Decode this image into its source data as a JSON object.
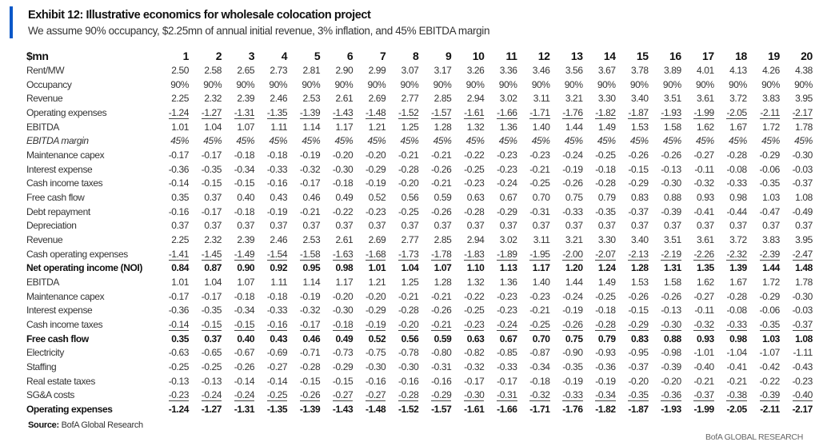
{
  "header": {
    "title": "Exhibit 12: Illustrative economics for wholesale colocation project",
    "subtitle": "We assume 90% occupancy, $2.25mn of annual initial revenue, 3% inflation, and 45% EBITDA margin",
    "accent_color": "#0a58c8"
  },
  "table": {
    "unit_label": "$mn",
    "columns": [
      "1",
      "2",
      "3",
      "4",
      "5",
      "6",
      "7",
      "8",
      "9",
      "10",
      "11",
      "12",
      "13",
      "14",
      "15",
      "16",
      "17",
      "18",
      "19",
      "20"
    ],
    "rows": [
      {
        "label": "Rent/MW",
        "values": [
          "2.50",
          "2.58",
          "2.65",
          "2.73",
          "2.81",
          "2.90",
          "2.99",
          "3.07",
          "3.17",
          "3.26",
          "3.36",
          "3.46",
          "3.56",
          "3.67",
          "3.78",
          "3.89",
          "4.01",
          "4.13",
          "4.26",
          "4.38"
        ]
      },
      {
        "label": "Occupancy",
        "values": [
          "90%",
          "90%",
          "90%",
          "90%",
          "90%",
          "90%",
          "90%",
          "90%",
          "90%",
          "90%",
          "90%",
          "90%",
          "90%",
          "90%",
          "90%",
          "90%",
          "90%",
          "90%",
          "90%",
          "90%"
        ]
      },
      {
        "label": "Revenue",
        "values": [
          "2.25",
          "2.32",
          "2.39",
          "2.46",
          "2.53",
          "2.61",
          "2.69",
          "2.77",
          "2.85",
          "2.94",
          "3.02",
          "3.11",
          "3.21",
          "3.30",
          "3.40",
          "3.51",
          "3.61",
          "3.72",
          "3.83",
          "3.95"
        ]
      },
      {
        "label": "Operating expenses",
        "values": [
          "-1.24",
          "-1.27",
          "-1.31",
          "-1.35",
          "-1.39",
          "-1.43",
          "-1.48",
          "-1.52",
          "-1.57",
          "-1.61",
          "-1.66",
          "-1.71",
          "-1.76",
          "-1.82",
          "-1.87",
          "-1.93",
          "-1.99",
          "-2.05",
          "-2.11",
          "-2.17"
        ]
      },
      {
        "label": "EBITDA",
        "values": [
          "1.01",
          "1.04",
          "1.07",
          "1.11",
          "1.14",
          "1.17",
          "1.21",
          "1.25",
          "1.28",
          "1.32",
          "1.36",
          "1.40",
          "1.44",
          "1.49",
          "1.53",
          "1.58",
          "1.62",
          "1.67",
          "1.72",
          "1.78"
        ]
      },
      {
        "label": "EBITDA margin",
        "values": [
          "45%",
          "45%",
          "45%",
          "45%",
          "45%",
          "45%",
          "45%",
          "45%",
          "45%",
          "45%",
          "45%",
          "45%",
          "45%",
          "45%",
          "45%",
          "45%",
          "45%",
          "45%",
          "45%",
          "45%"
        ]
      },
      {
        "label": "Maintenance capex",
        "values": [
          "-0.17",
          "-0.17",
          "-0.18",
          "-0.18",
          "-0.19",
          "-0.20",
          "-0.20",
          "-0.21",
          "-0.21",
          "-0.22",
          "-0.23",
          "-0.23",
          "-0.24",
          "-0.25",
          "-0.26",
          "-0.26",
          "-0.27",
          "-0.28",
          "-0.29",
          "-0.30"
        ]
      },
      {
        "label": "Interest expense",
        "values": [
          "-0.36",
          "-0.35",
          "-0.34",
          "-0.33",
          "-0.32",
          "-0.30",
          "-0.29",
          "-0.28",
          "-0.26",
          "-0.25",
          "-0.23",
          "-0.21",
          "-0.19",
          "-0.18",
          "-0.15",
          "-0.13",
          "-0.11",
          "-0.08",
          "-0.06",
          "-0.03"
        ]
      },
      {
        "label": "Cash income taxes",
        "values": [
          "-0.14",
          "-0.15",
          "-0.15",
          "-0.16",
          "-0.17",
          "-0.18",
          "-0.19",
          "-0.20",
          "-0.21",
          "-0.23",
          "-0.24",
          "-0.25",
          "-0.26",
          "-0.28",
          "-0.29",
          "-0.30",
          "-0.32",
          "-0.33",
          "-0.35",
          "-0.37"
        ]
      },
      {
        "label": "Free cash flow",
        "values": [
          "0.35",
          "0.37",
          "0.40",
          "0.43",
          "0.46",
          "0.49",
          "0.52",
          "0.56",
          "0.59",
          "0.63",
          "0.67",
          "0.70",
          "0.75",
          "0.79",
          "0.83",
          "0.88",
          "0.93",
          "0.98",
          "1.03",
          "1.08"
        ]
      },
      {
        "label": "Debt repayment",
        "values": [
          "-0.16",
          "-0.17",
          "-0.18",
          "-0.19",
          "-0.21",
          "-0.22",
          "-0.23",
          "-0.25",
          "-0.26",
          "-0.28",
          "-0.29",
          "-0.31",
          "-0.33",
          "-0.35",
          "-0.37",
          "-0.39",
          "-0.41",
          "-0.44",
          "-0.47",
          "-0.49"
        ]
      },
      {
        "label": "Depreciation",
        "values": [
          "0.37",
          "0.37",
          "0.37",
          "0.37",
          "0.37",
          "0.37",
          "0.37",
          "0.37",
          "0.37",
          "0.37",
          "0.37",
          "0.37",
          "0.37",
          "0.37",
          "0.37",
          "0.37",
          "0.37",
          "0.37",
          "0.37",
          "0.37"
        ]
      },
      {
        "label": "Revenue",
        "values": [
          "2.25",
          "2.32",
          "2.39",
          "2.46",
          "2.53",
          "2.61",
          "2.69",
          "2.77",
          "2.85",
          "2.94",
          "3.02",
          "3.11",
          "3.21",
          "3.30",
          "3.40",
          "3.51",
          "3.61",
          "3.72",
          "3.83",
          "3.95"
        ]
      },
      {
        "label": "Cash operating expenses",
        "values": [
          "-1.41",
          "-1.45",
          "-1.49",
          "-1.54",
          "-1.58",
          "-1.63",
          "-1.68",
          "-1.73",
          "-1.78",
          "-1.83",
          "-1.89",
          "-1.95",
          "-2.00",
          "-2.07",
          "-2.13",
          "-2.19",
          "-2.26",
          "-2.32",
          "-2.39",
          "-2.47"
        ]
      },
      {
        "label": "Net operating income (NOI)",
        "values": [
          "0.84",
          "0.87",
          "0.90",
          "0.92",
          "0.95",
          "0.98",
          "1.01",
          "1.04",
          "1.07",
          "1.10",
          "1.13",
          "1.17",
          "1.20",
          "1.24",
          "1.28",
          "1.31",
          "1.35",
          "1.39",
          "1.44",
          "1.48"
        ]
      },
      {
        "label": "EBITDA",
        "values": [
          "1.01",
          "1.04",
          "1.07",
          "1.11",
          "1.14",
          "1.17",
          "1.21",
          "1.25",
          "1.28",
          "1.32",
          "1.36",
          "1.40",
          "1.44",
          "1.49",
          "1.53",
          "1.58",
          "1.62",
          "1.67",
          "1.72",
          "1.78"
        ]
      },
      {
        "label": "Maintenance capex",
        "values": [
          "-0.17",
          "-0.17",
          "-0.18",
          "-0.18",
          "-0.19",
          "-0.20",
          "-0.20",
          "-0.21",
          "-0.21",
          "-0.22",
          "-0.23",
          "-0.23",
          "-0.24",
          "-0.25",
          "-0.26",
          "-0.26",
          "-0.27",
          "-0.28",
          "-0.29",
          "-0.30"
        ]
      },
      {
        "label": "Interest expense",
        "values": [
          "-0.36",
          "-0.35",
          "-0.34",
          "-0.33",
          "-0.32",
          "-0.30",
          "-0.29",
          "-0.28",
          "-0.26",
          "-0.25",
          "-0.23",
          "-0.21",
          "-0.19",
          "-0.18",
          "-0.15",
          "-0.13",
          "-0.11",
          "-0.08",
          "-0.06",
          "-0.03"
        ]
      },
      {
        "label": "Cash income taxes",
        "values": [
          "-0.14",
          "-0.15",
          "-0.15",
          "-0.16",
          "-0.17",
          "-0.18",
          "-0.19",
          "-0.20",
          "-0.21",
          "-0.23",
          "-0.24",
          "-0.25",
          "-0.26",
          "-0.28",
          "-0.29",
          "-0.30",
          "-0.32",
          "-0.33",
          "-0.35",
          "-0.37"
        ]
      },
      {
        "label": "Free cash flow",
        "values": [
          "0.35",
          "0.37",
          "0.40",
          "0.43",
          "0.46",
          "0.49",
          "0.52",
          "0.56",
          "0.59",
          "0.63",
          "0.67",
          "0.70",
          "0.75",
          "0.79",
          "0.83",
          "0.88",
          "0.93",
          "0.98",
          "1.03",
          "1.08"
        ]
      },
      {
        "label": "Electricity",
        "values": [
          "-0.63",
          "-0.65",
          "-0.67",
          "-0.69",
          "-0.71",
          "-0.73",
          "-0.75",
          "-0.78",
          "-0.80",
          "-0.82",
          "-0.85",
          "-0.87",
          "-0.90",
          "-0.93",
          "-0.95",
          "-0.98",
          "-1.01",
          "-1.04",
          "-1.07",
          "-1.11"
        ]
      },
      {
        "label": "Staffing",
        "values": [
          "-0.25",
          "-0.25",
          "-0.26",
          "-0.27",
          "-0.28",
          "-0.29",
          "-0.30",
          "-0.30",
          "-0.31",
          "-0.32",
          "-0.33",
          "-0.34",
          "-0.35",
          "-0.36",
          "-0.37",
          "-0.39",
          "-0.40",
          "-0.41",
          "-0.42",
          "-0.43"
        ]
      },
      {
        "label": "Real estate taxes",
        "values": [
          "-0.13",
          "-0.13",
          "-0.14",
          "-0.14",
          "-0.15",
          "-0.15",
          "-0.16",
          "-0.16",
          "-0.16",
          "-0.17",
          "-0.17",
          "-0.18",
          "-0.19",
          "-0.19",
          "-0.20",
          "-0.20",
          "-0.21",
          "-0.21",
          "-0.22",
          "-0.23"
        ]
      },
      {
        "label": "SG&A costs",
        "values": [
          "-0.23",
          "-0.24",
          "-0.24",
          "-0.25",
          "-0.26",
          "-0.27",
          "-0.27",
          "-0.28",
          "-0.29",
          "-0.30",
          "-0.31",
          "-0.32",
          "-0.33",
          "-0.34",
          "-0.35",
          "-0.36",
          "-0.37",
          "-0.38",
          "-0.39",
          "-0.40"
        ]
      },
      {
        "label": "Operating expenses",
        "values": [
          "-1.24",
          "-1.27",
          "-1.31",
          "-1.35",
          "-1.39",
          "-1.43",
          "-1.48",
          "-1.52",
          "-1.57",
          "-1.61",
          "-1.66",
          "-1.71",
          "-1.76",
          "-1.82",
          "-1.87",
          "-1.93",
          "-1.99",
          "-2.05",
          "-2.11",
          "-2.17"
        ]
      }
    ]
  },
  "footer": {
    "source_label": "Source:",
    "source_text": "BofA Global Research",
    "brand": "BofA GLOBAL RESEARCH"
  }
}
